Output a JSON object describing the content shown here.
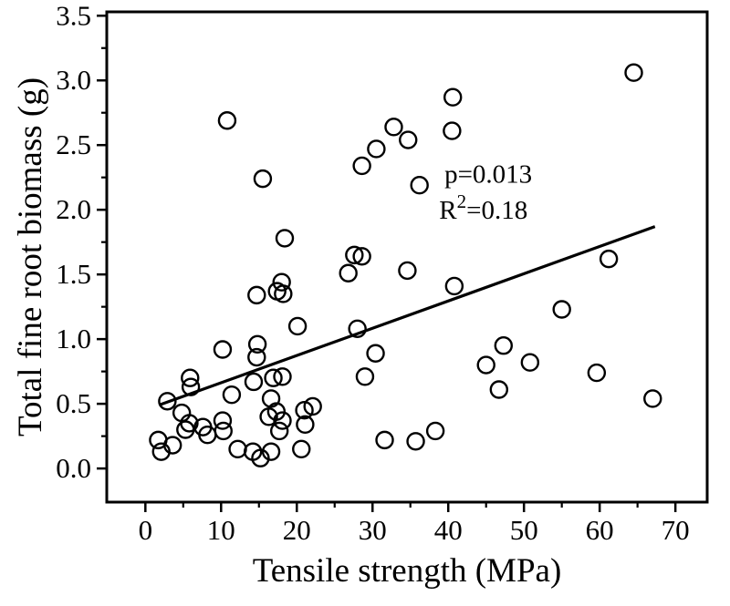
{
  "chart_data": {
    "type": "scatter",
    "title": "",
    "xlabel": "Tensile strength (MPa)",
    "ylabel": "Total fine root biomass (g)",
    "colors": {
      "points": "#000000",
      "line": "#000000",
      "frame": "#000000"
    },
    "x_axis": {
      "min": -5.1,
      "max": 74.2,
      "major_ticks": [
        0,
        10,
        20,
        30,
        40,
        50,
        60,
        70
      ],
      "major_labels": [
        "0",
        "10",
        "20",
        "30",
        "40",
        "50",
        "60",
        "70"
      ],
      "minor_ticks": [
        5,
        15,
        25,
        35,
        45,
        55,
        65
      ]
    },
    "y_axis": {
      "min": -0.26,
      "max": 3.53,
      "major_ticks": [
        0,
        0.5,
        1.0,
        1.5,
        2.0,
        2.5,
        3.0,
        3.5
      ],
      "major_labels": [
        "0.0",
        "0.5",
        "1.0",
        "1.5",
        "2.0",
        "2.5",
        "3.0",
        "3.5"
      ],
      "minor_ticks": [
        0.25,
        0.75,
        1.25,
        1.75,
        2.25,
        2.75,
        3.25
      ]
    },
    "grid": false,
    "legend": null,
    "points": [
      [
        10.8,
        2.69
      ],
      [
        15.5,
        2.24
      ],
      [
        18.4,
        1.78
      ],
      [
        28.6,
        2.34
      ],
      [
        30.5,
        2.47
      ],
      [
        32.8,
        2.64
      ],
      [
        34.7,
        2.54
      ],
      [
        36.2,
        2.19
      ],
      [
        40.6,
        2.87
      ],
      [
        40.5,
        2.61
      ],
      [
        64.5,
        3.06
      ],
      [
        27.6,
        1.65
      ],
      [
        28.6,
        1.64
      ],
      [
        26.8,
        1.51
      ],
      [
        14.7,
        1.34
      ],
      [
        17.4,
        1.37
      ],
      [
        18.0,
        1.44
      ],
      [
        18.2,
        1.35
      ],
      [
        34.6,
        1.53
      ],
      [
        40.8,
        1.41
      ],
      [
        61.2,
        1.62
      ],
      [
        20.1,
        1.1
      ],
      [
        28.0,
        1.08
      ],
      [
        55.0,
        1.23
      ],
      [
        10.2,
        0.92
      ],
      [
        14.8,
        0.96
      ],
      [
        14.7,
        0.86
      ],
      [
        30.4,
        0.89
      ],
      [
        29.0,
        0.71
      ],
      [
        47.3,
        0.95
      ],
      [
        45.0,
        0.8
      ],
      [
        50.8,
        0.82
      ],
      [
        46.7,
        0.61
      ],
      [
        59.6,
        0.74
      ],
      [
        67.0,
        0.54
      ],
      [
        5.9,
        0.7
      ],
      [
        6.0,
        0.63
      ],
      [
        2.9,
        0.52
      ],
      [
        4.8,
        0.43
      ],
      [
        5.8,
        0.35
      ],
      [
        5.3,
        0.3
      ],
      [
        7.6,
        0.32
      ],
      [
        8.2,
        0.26
      ],
      [
        10.2,
        0.37
      ],
      [
        10.3,
        0.29
      ],
      [
        11.4,
        0.57
      ],
      [
        14.3,
        0.67
      ],
      [
        16.9,
        0.7
      ],
      [
        18.1,
        0.71
      ],
      [
        16.6,
        0.54
      ],
      [
        16.3,
        0.4
      ],
      [
        17.3,
        0.44
      ],
      [
        18.1,
        0.37
      ],
      [
        17.7,
        0.29
      ],
      [
        21.0,
        0.45
      ],
      [
        22.1,
        0.48
      ],
      [
        21.1,
        0.34
      ],
      [
        1.7,
        0.22
      ],
      [
        3.6,
        0.18
      ],
      [
        2.1,
        0.13
      ],
      [
        12.2,
        0.15
      ],
      [
        14.2,
        0.13
      ],
      [
        15.2,
        0.08
      ],
      [
        16.6,
        0.13
      ],
      [
        20.6,
        0.15
      ],
      [
        31.6,
        0.22
      ],
      [
        35.7,
        0.21
      ],
      [
        38.3,
        0.29
      ]
    ],
    "regression_line": {
      "x1": 1.8,
      "y1": 0.49,
      "x2": 67.3,
      "y2": 1.87
    },
    "annotations": [
      {
        "id": "p-value",
        "x": 39.5,
        "y": 2.21,
        "segments": [
          {
            "text": "p=0.013"
          }
        ]
      },
      {
        "id": "r-squared",
        "x": 38.8,
        "y": 1.93,
        "segments": [
          {
            "text": "R"
          },
          {
            "text": "2",
            "sup": true
          },
          {
            "text": "=0.18"
          }
        ]
      }
    ]
  }
}
